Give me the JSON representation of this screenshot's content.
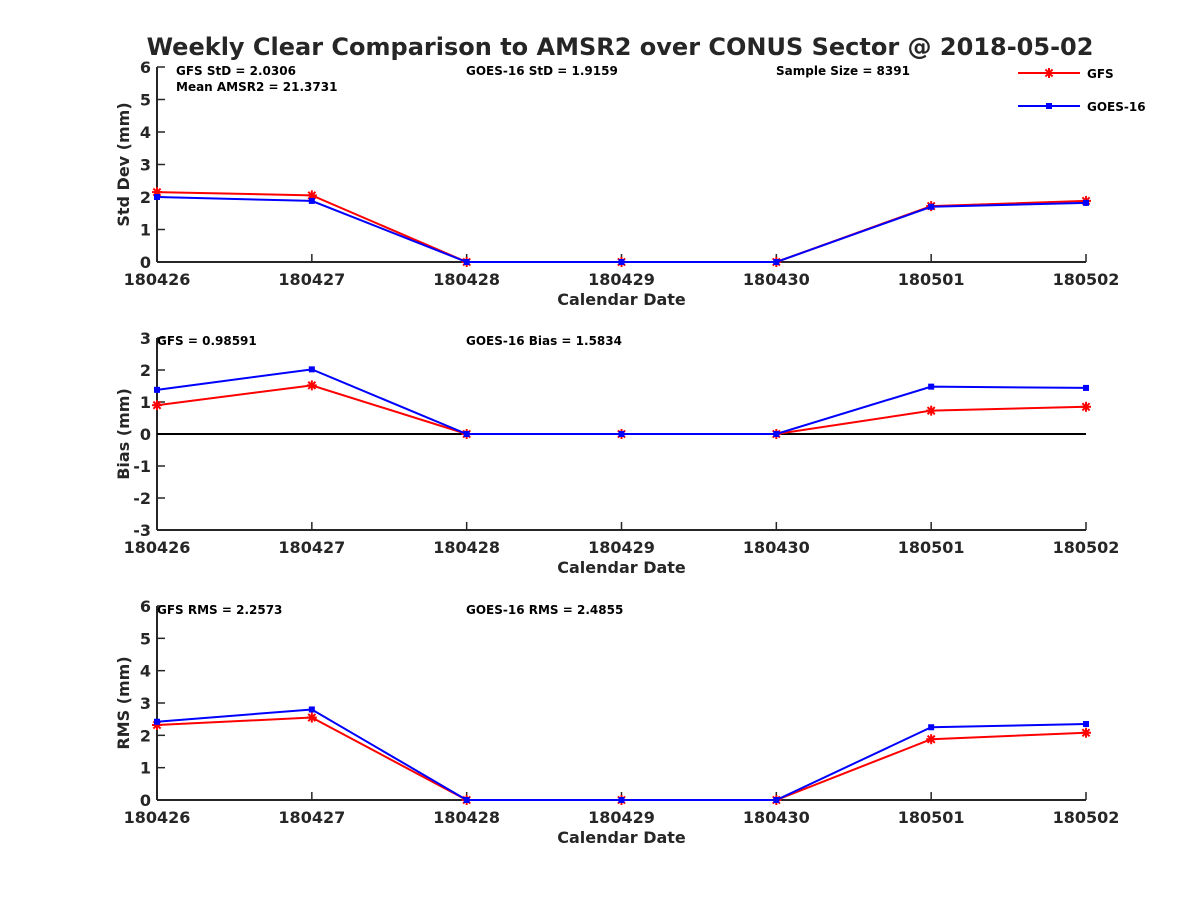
{
  "chart_data": {
    "type": "line",
    "title": "Weekly Clear Comparison to AMSR2 over CONUS Sector @ 2018-05-02",
    "legend": {
      "placement": "top-right",
      "entries": [
        "GFS",
        "GOES-16"
      ]
    },
    "colors": {
      "GFS": "#ff0000",
      "GOES-16": "#0000ff",
      "axis": "#262626",
      "zero_line": "#000000"
    },
    "categories": [
      "180426",
      "180427",
      "180428",
      "180429",
      "180430",
      "180501",
      "180502"
    ],
    "panels": [
      {
        "xlabel": "Calendar Date",
        "ylabel": "Std Dev (mm)",
        "ylim": [
          0,
          6
        ],
        "yticks": [
          "0",
          "1",
          "2",
          "3",
          "4",
          "5",
          "6"
        ],
        "grid": false,
        "zero_line": false,
        "annotations": [
          "GFS StD = 2.0306",
          "Mean AMSR2 = 21.3731",
          "GOES-16 StD = 1.9159",
          "Sample Size = 8391"
        ],
        "series": [
          {
            "name": "GFS",
            "marker": "asterisk",
            "values": [
              2.15,
              2.05,
              0,
              0,
              0,
              1.72,
              1.88
            ]
          },
          {
            "name": "GOES-16",
            "marker": "square",
            "values": [
              2.0,
              1.88,
              0,
              0,
              0,
              1.7,
              1.82
            ]
          }
        ]
      },
      {
        "xlabel": "Calendar Date",
        "ylabel": "Bias (mm)",
        "ylim": [
          -3,
          3
        ],
        "yticks": [
          "-3",
          "-2",
          "-1",
          "0",
          "1",
          "2",
          "3"
        ],
        "grid": false,
        "zero_line": true,
        "annotations": [
          "GFS = 0.98591",
          "GOES-16 Bias  = 1.5834"
        ],
        "series": [
          {
            "name": "GFS",
            "marker": "asterisk",
            "values": [
              0.9,
              1.52,
              0,
              0,
              0,
              0.73,
              0.85
            ]
          },
          {
            "name": "GOES-16",
            "marker": "square",
            "values": [
              1.38,
              2.02,
              0,
              0,
              0,
              1.48,
              1.44
            ]
          }
        ]
      },
      {
        "xlabel": "Calendar Date",
        "ylabel": "RMS (mm)",
        "ylim": [
          0,
          6
        ],
        "yticks": [
          "0",
          "1",
          "2",
          "3",
          "4",
          "5",
          "6"
        ],
        "grid": false,
        "zero_line": false,
        "annotations": [
          "GFS RMS = 2.2573",
          "GOES-16 RMS = 2.4855"
        ],
        "series": [
          {
            "name": "GFS",
            "marker": "asterisk",
            "values": [
              2.32,
              2.55,
              0,
              0,
              0,
              1.88,
              2.08
            ]
          },
          {
            "name": "GOES-16",
            "marker": "square",
            "values": [
              2.42,
              2.8,
              0,
              0,
              0,
              2.25,
              2.35
            ]
          }
        ]
      }
    ]
  }
}
